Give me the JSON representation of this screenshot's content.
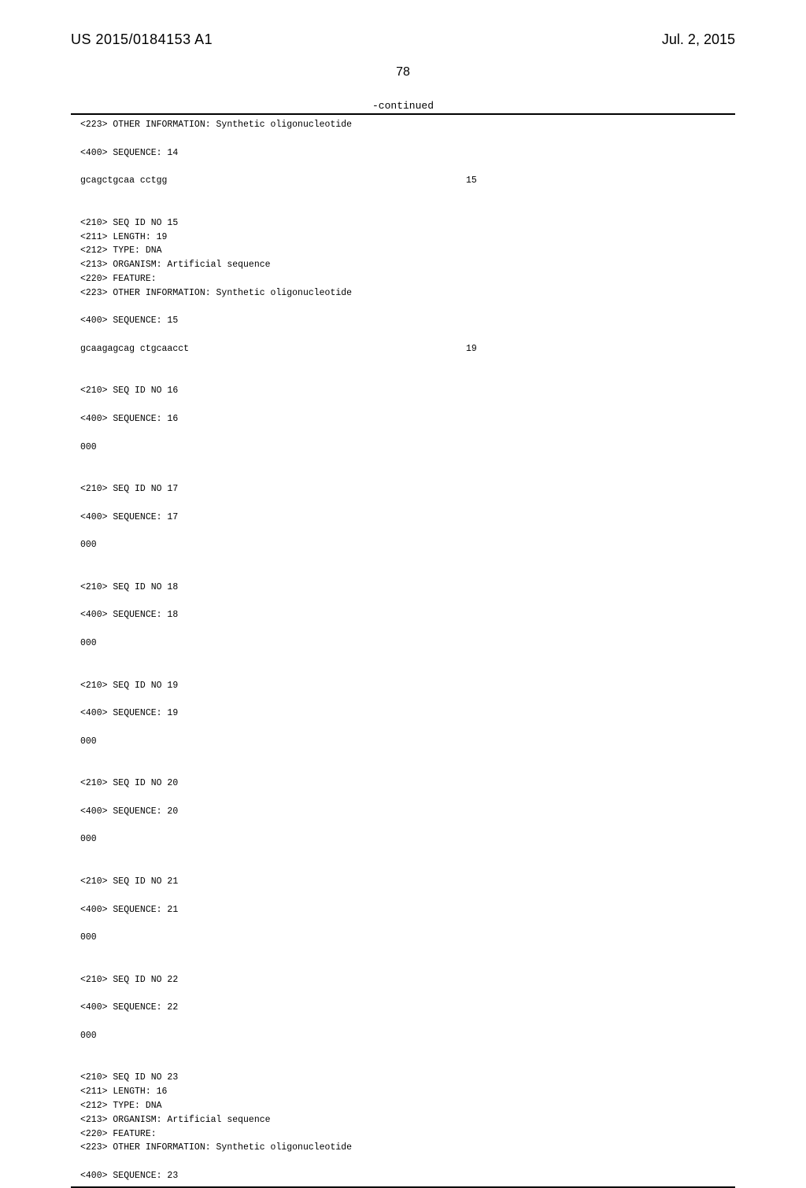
{
  "header": {
    "pub_number": "US 2015/0184153 A1",
    "pub_date": "Jul. 2, 2015"
  },
  "page_number": "78",
  "continued_label": "-continued",
  "sequence_lines": [
    "<223> OTHER INFORMATION: Synthetic oligonucleotide",
    "",
    "<400> SEQUENCE: 14",
    "",
    "gcagctgcaa cctgg                                                       15",
    "",
    "",
    "<210> SEQ ID NO 15",
    "<211> LENGTH: 19",
    "<212> TYPE: DNA",
    "<213> ORGANISM: Artificial sequence",
    "<220> FEATURE:",
    "<223> OTHER INFORMATION: Synthetic oligonucleotide",
    "",
    "<400> SEQUENCE: 15",
    "",
    "gcaagagcag ctgcaacct                                                   19",
    "",
    "",
    "<210> SEQ ID NO 16",
    "",
    "<400> SEQUENCE: 16",
    "",
    "000",
    "",
    "",
    "<210> SEQ ID NO 17",
    "",
    "<400> SEQUENCE: 17",
    "",
    "000",
    "",
    "",
    "<210> SEQ ID NO 18",
    "",
    "<400> SEQUENCE: 18",
    "",
    "000",
    "",
    "",
    "<210> SEQ ID NO 19",
    "",
    "<400> SEQUENCE: 19",
    "",
    "000",
    "",
    "",
    "<210> SEQ ID NO 20",
    "",
    "<400> SEQUENCE: 20",
    "",
    "000",
    "",
    "",
    "<210> SEQ ID NO 21",
    "",
    "<400> SEQUENCE: 21",
    "",
    "000",
    "",
    "",
    "<210> SEQ ID NO 22",
    "",
    "<400> SEQUENCE: 22",
    "",
    "000",
    "",
    "",
    "<210> SEQ ID NO 23",
    "<211> LENGTH: 16",
    "<212> TYPE: DNA",
    "<213> ORGANISM: Artificial sequence",
    "<220> FEATURE:",
    "<223> OTHER INFORMATION: Synthetic oligonucleotide",
    "",
    "<400> SEQUENCE: 23"
  ]
}
